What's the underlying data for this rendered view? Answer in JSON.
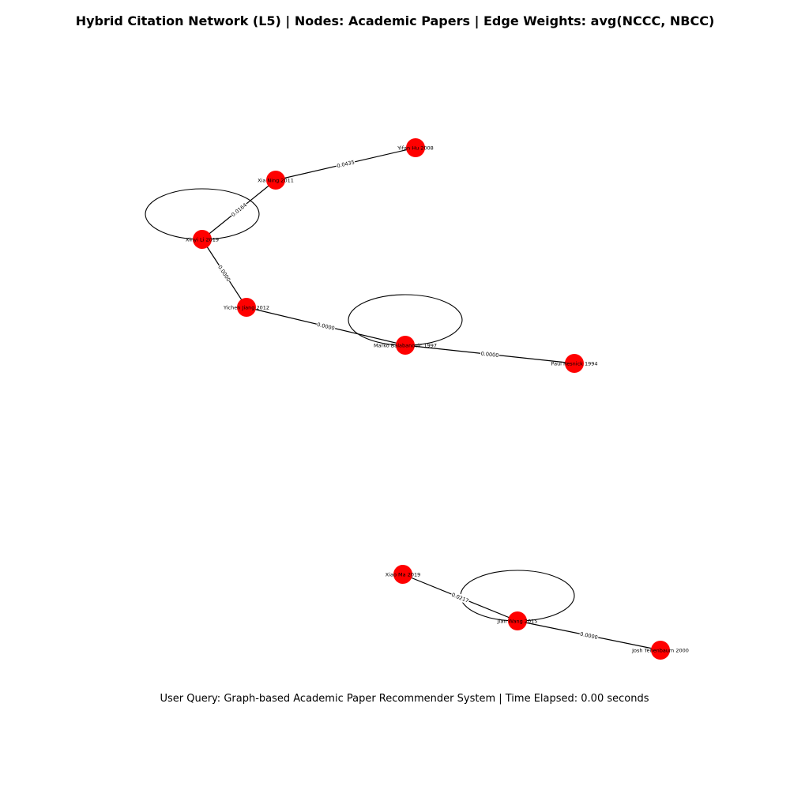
{
  "title": "Hybrid Citation Network (L5) | Nodes: Academic Papers | Edge Weights: avg(NCCC, NBCC)",
  "footer": "User Query: Graph-based Academic Paper Recommender System | Time Elapsed: 0.00 seconds",
  "node_color": "#ff0000",
  "nodes": [
    {
      "id": "n1",
      "label": "Yifan Hu 2008"
    },
    {
      "id": "n2",
      "label": "Xia Ning 2011"
    },
    {
      "id": "n3",
      "label": "Xinyi Li 2019"
    },
    {
      "id": "n4",
      "label": "Yichen Jiang 2012"
    },
    {
      "id": "n5",
      "label": "Marko Balabanovic 1997"
    },
    {
      "id": "n6",
      "label": "Paul Resnick 1994"
    },
    {
      "id": "n7",
      "label": "Xiao Ma 2019"
    },
    {
      "id": "n8",
      "label": "Jian Wang 2015"
    },
    {
      "id": "n9",
      "label": "Josh Tenenbaum 2000"
    }
  ],
  "edges": [
    {
      "source": "n2",
      "target": "n1",
      "weight": "0.0435"
    },
    {
      "source": "n3",
      "target": "n2",
      "weight": "0.0164"
    },
    {
      "source": "n3",
      "target": "n4",
      "weight": "0.0000"
    },
    {
      "source": "n4",
      "target": "n5",
      "weight": "0.0000"
    },
    {
      "source": "n5",
      "target": "n6",
      "weight": "0.0000"
    },
    {
      "source": "n7",
      "target": "n8",
      "weight": "0.0217"
    },
    {
      "source": "n8",
      "target": "n9",
      "weight": "0.0000"
    }
  ],
  "self_loops": [
    "n3",
    "n5",
    "n8"
  ]
}
